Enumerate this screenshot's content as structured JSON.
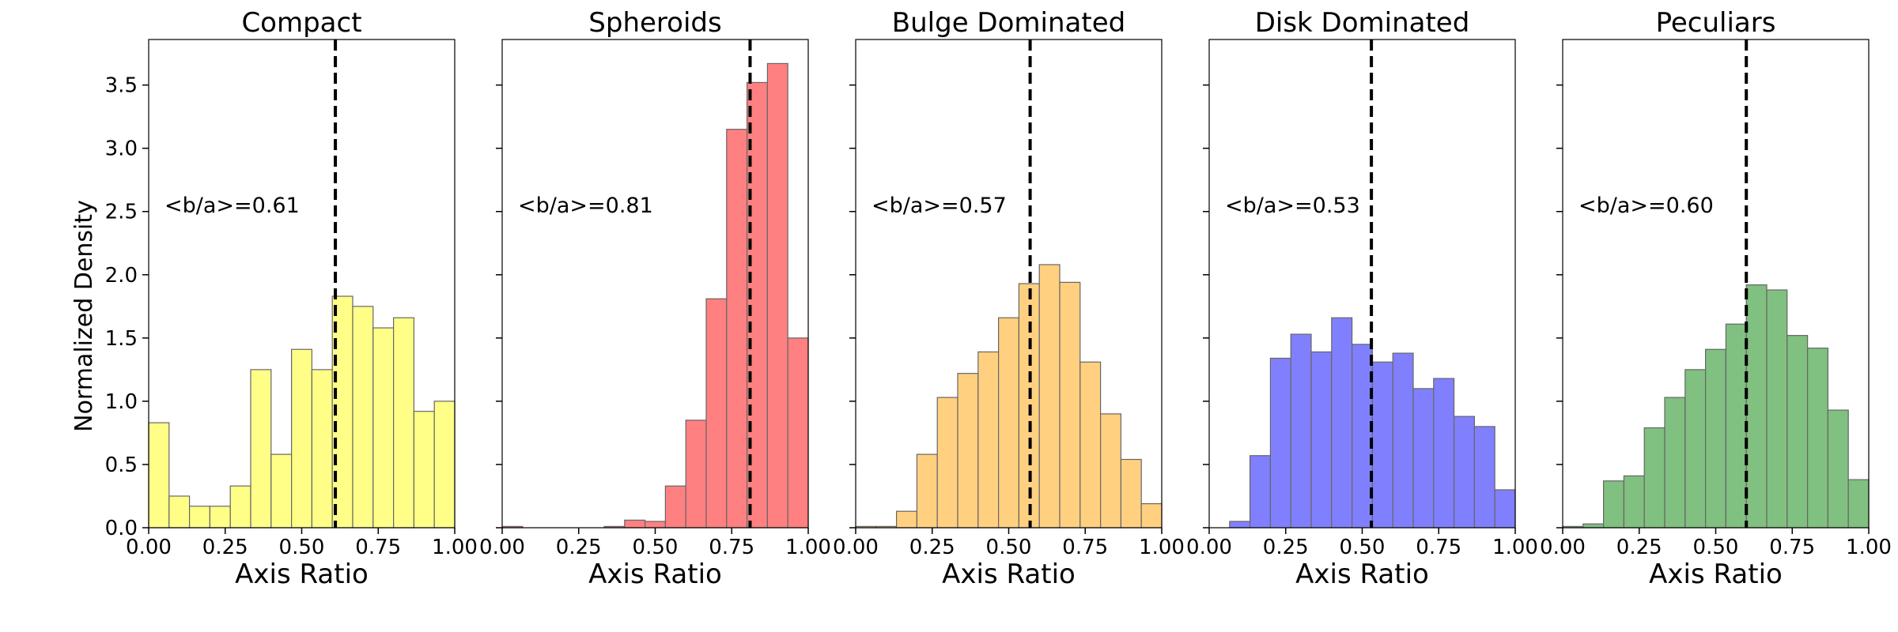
{
  "figure": {
    "ylabel": "Normalized Density"
  },
  "chart_data": [
    {
      "type": "bar",
      "title": "Compact",
      "xlabel": "Axis Ratio",
      "ylabel": "Normalized Density",
      "xlim": [
        0,
        1
      ],
      "ylim": [
        0,
        3.86
      ],
      "xticks": [
        "0.00",
        "0.25",
        "0.50",
        "0.75",
        "1.00"
      ],
      "yticks": [
        "0.0",
        "0.5",
        "1.0",
        "1.5",
        "2.0",
        "2.5",
        "3.0",
        "3.5"
      ],
      "bin_edges": [
        0,
        0.0667,
        0.1333,
        0.2,
        0.2667,
        0.3333,
        0.4,
        0.4667,
        0.5333,
        0.6,
        0.6667,
        0.7333,
        0.8,
        0.8667,
        0.9333,
        1.0
      ],
      "values": [
        0.83,
        0.25,
        0.17,
        0.17,
        0.33,
        1.25,
        0.58,
        1.41,
        1.25,
        1.83,
        1.75,
        1.58,
        1.66,
        0.92,
        1.0
      ],
      "color": "#ffff88",
      "mean_label": "<b/a>=0.61",
      "mean_value": 0.61
    },
    {
      "type": "bar",
      "title": "Spheroids",
      "xlabel": "Axis Ratio",
      "ylabel": "Normalized Density",
      "xlim": [
        0,
        1
      ],
      "ylim": [
        0,
        3.86
      ],
      "xticks": [
        "0.00",
        "0.25",
        "0.50",
        "0.75",
        "1.00"
      ],
      "yticks": [
        "0.0",
        "0.5",
        "1.0",
        "1.5",
        "2.0",
        "2.5",
        "3.0",
        "3.5"
      ],
      "bin_edges": [
        0,
        0.0667,
        0.1333,
        0.2,
        0.2667,
        0.3333,
        0.4,
        0.4667,
        0.5333,
        0.6,
        0.6667,
        0.7333,
        0.8,
        0.8667,
        0.9333,
        1.0
      ],
      "values": [
        0.01,
        0,
        0,
        0,
        0,
        0.01,
        0.06,
        0.05,
        0.33,
        0.85,
        1.81,
        3.15,
        3.52,
        3.67,
        1.5
      ],
      "color": "#ff8080",
      "mean_label": "<b/a>=0.81",
      "mean_value": 0.81
    },
    {
      "type": "bar",
      "title": "Bulge Dominated",
      "xlabel": "Axis Ratio",
      "ylabel": "Normalized Density",
      "xlim": [
        0,
        1
      ],
      "ylim": [
        0,
        3.86
      ],
      "xticks": [
        "0.00",
        "0.25",
        "0.50",
        "0.75",
        "1.00"
      ],
      "yticks": [
        "0.0",
        "0.5",
        "1.0",
        "1.5",
        "2.0",
        "2.5",
        "3.0",
        "3.5"
      ],
      "bin_edges": [
        0,
        0.0667,
        0.1333,
        0.2,
        0.2667,
        0.3333,
        0.4,
        0.4667,
        0.5333,
        0.6,
        0.6667,
        0.7333,
        0.8,
        0.8667,
        0.9333,
        1.0
      ],
      "values": [
        0.01,
        0.01,
        0.13,
        0.58,
        1.03,
        1.22,
        1.39,
        1.66,
        1.93,
        2.08,
        1.94,
        1.31,
        0.9,
        0.54,
        0.19
      ],
      "color": "#ffd080",
      "mean_label": "<b/a>=0.57",
      "mean_value": 0.57
    },
    {
      "type": "bar",
      "title": "Disk Dominated",
      "xlabel": "Axis Ratio",
      "ylabel": "Normalized Density",
      "xlim": [
        0,
        1
      ],
      "ylim": [
        0,
        3.86
      ],
      "xticks": [
        "0.00",
        "0.25",
        "0.50",
        "0.75",
        "1.00"
      ],
      "yticks": [
        "0.0",
        "0.5",
        "1.0",
        "1.5",
        "2.0",
        "2.5",
        "3.0",
        "3.5"
      ],
      "bin_edges": [
        0,
        0.0667,
        0.1333,
        0.2,
        0.2667,
        0.3333,
        0.4,
        0.4667,
        0.5333,
        0.6,
        0.6667,
        0.7333,
        0.8,
        0.8667,
        0.9333,
        1.0
      ],
      "values": [
        0,
        0.05,
        0.57,
        1.34,
        1.53,
        1.39,
        1.66,
        1.45,
        1.31,
        1.38,
        1.1,
        1.18,
        0.88,
        0.8,
        0.3
      ],
      "color": "#8080ff",
      "mean_label": "<b/a>=0.53",
      "mean_value": 0.53
    },
    {
      "type": "bar",
      "title": "Peculiars",
      "xlabel": "Axis Ratio",
      "ylabel": "Normalized Density",
      "xlim": [
        0,
        1
      ],
      "ylim": [
        0,
        3.86
      ],
      "xticks": [
        "0.00",
        "0.25",
        "0.50",
        "0.75",
        "1.00"
      ],
      "yticks": [
        "0.0",
        "0.5",
        "1.0",
        "1.5",
        "2.0",
        "2.5",
        "3.0",
        "3.5"
      ],
      "bin_edges": [
        0,
        0.0667,
        0.1333,
        0.2,
        0.2667,
        0.3333,
        0.4,
        0.4667,
        0.5333,
        0.6,
        0.6667,
        0.7333,
        0.8,
        0.8667,
        0.9333,
        1.0
      ],
      "values": [
        0.01,
        0.03,
        0.37,
        0.41,
        0.79,
        1.03,
        1.25,
        1.41,
        1.61,
        1.92,
        1.88,
        1.52,
        1.42,
        0.93,
        0.38
      ],
      "color": "#80c080",
      "mean_label": "<b/a>=0.60",
      "mean_value": 0.6
    }
  ]
}
